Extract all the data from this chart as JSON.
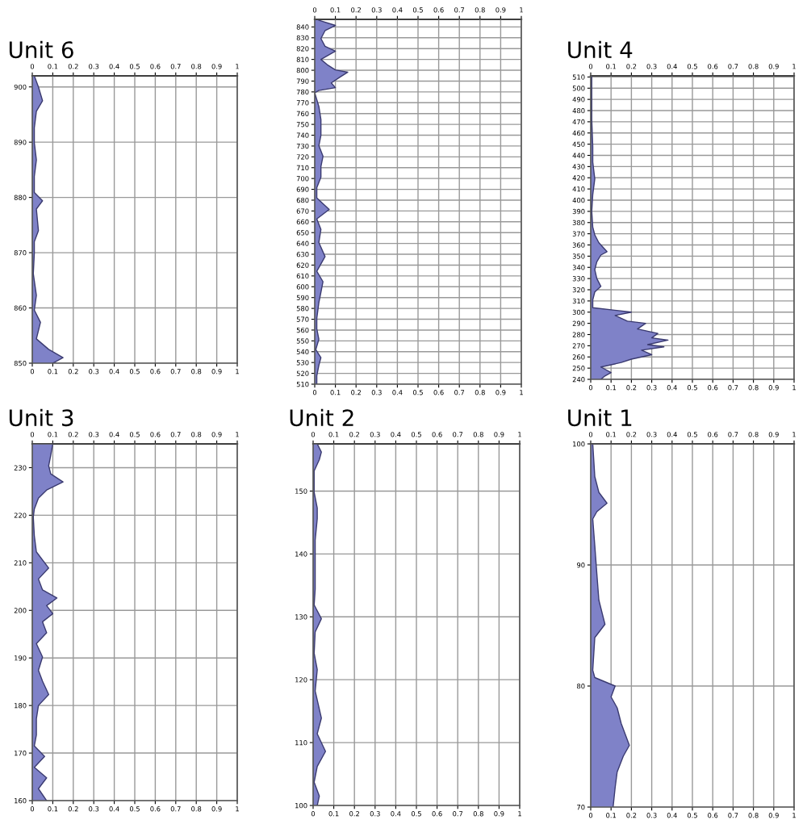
{
  "chart_data": [
    {
      "type": "area",
      "orientation": "horizontal",
      "title": "Unit 6",
      "grid": true,
      "xlim": [
        0,
        1
      ],
      "xticks": [
        0,
        0.1,
        0.2,
        0.3,
        0.4,
        0.5,
        0.6,
        0.7,
        0.8,
        0.9,
        1
      ],
      "x2lim": [
        0,
        1
      ],
      "x2ticks": [
        0,
        0.1,
        0.2,
        0.3,
        0.4,
        0.5,
        0.6,
        0.7,
        0.8,
        0.9,
        1
      ],
      "ylim": [
        850,
        902
      ],
      "yticks": [
        850,
        860,
        870,
        880,
        890,
        900
      ],
      "series": [
        {
          "color": "#7f82c8",
          "x": [
            902,
            900,
            897.5,
            895.6,
            892.6,
            889.9,
            886.8,
            883.8,
            880.9,
            879.4,
            877.9,
            874,
            872,
            869.9,
            866.2,
            862.3,
            859.6,
            857.4,
            854.4,
            852.5,
            851,
            850
          ],
          "values": [
            0.01,
            0.03,
            0.05,
            0.02,
            0.01,
            0.01,
            0.02,
            0.01,
            0.01,
            0.05,
            0.02,
            0.03,
            0.01,
            0.01,
            0.005,
            0.02,
            0.01,
            0.04,
            0.02,
            0.08,
            0.15,
            0.1
          ]
        }
      ]
    },
    {
      "type": "area",
      "orientation": "horizontal",
      "grid": true,
      "xlim": [
        0,
        1
      ],
      "xticks": [
        0,
        0.1,
        0.2,
        0.3,
        0.4,
        0.5,
        0.6,
        0.7,
        0.8,
        0.9,
        1
      ],
      "x2lim": [
        0,
        1
      ],
      "x2ticks": [
        0,
        0.1,
        0.2,
        0.3,
        0.4,
        0.5,
        0.6,
        0.7,
        0.8,
        0.9,
        1
      ],
      "ylim": [
        510,
        847
      ],
      "yticks": [
        510,
        520,
        530,
        540,
        550,
        560,
        570,
        580,
        590,
        600,
        610,
        620,
        630,
        640,
        650,
        660,
        670,
        680,
        690,
        700,
        710,
        720,
        730,
        740,
        750,
        760,
        770,
        780,
        790,
        800,
        810,
        820,
        830,
        840
      ],
      "series": [
        {
          "color": "#7f82c8",
          "x": [
            846.2,
            841.4,
            836.6,
            829.3,
            822.1,
            817.6,
            810,
            805.2,
            800.3,
            798.2,
            793.4,
            788.3,
            783.9,
            781.3,
            779.2,
            766.5,
            754.4,
            740,
            730.3,
            720.6,
            711,
            701.3,
            691.6,
            682,
            671.4,
            662.7,
            653,
            640.9,
            627.9,
            614.3,
            604.7,
            595,
            585.4,
            570.9,
            561.2,
            551.5,
            541.9,
            534.6,
            527.4,
            517.7,
            510
          ],
          "values": [
            0.02,
            0.1,
            0.05,
            0.03,
            0.05,
            0.1,
            0.03,
            0.06,
            0.1,
            0.16,
            0.12,
            0.08,
            0.1,
            0.02,
            0,
            0.02,
            0.03,
            0.03,
            0.02,
            0.04,
            0.03,
            0.03,
            0.01,
            0.01,
            0.07,
            0.01,
            0.03,
            0.02,
            0.05,
            0.01,
            0.04,
            0.03,
            0.02,
            0.01,
            0.01,
            0.02,
            0.005,
            0.03,
            0.02,
            0.01,
            0.01
          ]
        }
      ]
    },
    {
      "type": "area",
      "orientation": "horizontal",
      "title": "Unit 4",
      "grid": true,
      "xlim": [
        0,
        1
      ],
      "xticks": [
        0,
        0.1,
        0.2,
        0.3,
        0.4,
        0.5,
        0.6,
        0.7,
        0.8,
        0.9,
        1
      ],
      "x2lim": [
        0,
        1
      ],
      "x2ticks": [
        0,
        0.1,
        0.2,
        0.3,
        0.4,
        0.5,
        0.6,
        0.7,
        0.8,
        0.9,
        1
      ],
      "ylim": [
        240,
        511
      ],
      "yticks": [
        240,
        250,
        260,
        270,
        280,
        290,
        300,
        310,
        320,
        330,
        340,
        350,
        360,
        370,
        380,
        390,
        400,
        410,
        420,
        430,
        440,
        450,
        460,
        470,
        480,
        490,
        500,
        510
      ],
      "series": [
        {
          "color": "#7f82c8",
          "x": [
            510.7,
            472,
            448,
            434,
            419,
            405,
            390,
            376,
            369,
            362,
            354,
            351,
            345,
            338,
            330,
            323,
            318,
            311,
            304,
            300,
            297,
            292,
            290,
            285,
            281,
            277,
            275,
            271,
            269,
            266,
            262,
            258,
            255,
            251,
            246,
            243,
            240
          ],
          "values": [
            0.005,
            0.005,
            0.01,
            0.01,
            0.02,
            0.01,
            0.005,
            0.01,
            0.02,
            0.04,
            0.08,
            0.05,
            0.03,
            0.02,
            0.03,
            0.05,
            0.02,
            0.01,
            0.01,
            0.2,
            0.12,
            0.18,
            0.27,
            0.23,
            0.33,
            0.3,
            0.38,
            0.28,
            0.36,
            0.25,
            0.3,
            0.2,
            0.15,
            0.05,
            0.1,
            0.07,
            0.05
          ]
        }
      ]
    },
    {
      "type": "area",
      "orientation": "horizontal",
      "title": "Unit 3",
      "grid": true,
      "xlim": [
        0,
        1
      ],
      "xticks": [
        0,
        0.1,
        0.2,
        0.3,
        0.4,
        0.5,
        0.6,
        0.7,
        0.8,
        0.9,
        1
      ],
      "x2lim": [
        0,
        1
      ],
      "x2ticks": [
        0,
        0.1,
        0.2,
        0.3,
        0.4,
        0.5,
        0.6,
        0.7,
        0.8,
        0.9,
        1
      ],
      "ylim": [
        160,
        235
      ],
      "yticks": [
        160,
        170,
        180,
        190,
        200,
        210,
        220,
        230
      ],
      "series": [
        {
          "color": "#7f82c8",
          "x": [
            235,
            232.6,
            230.4,
            228.7,
            227,
            225.3,
            223.6,
            221.3,
            219.6,
            215.7,
            212.3,
            208.9,
            206.6,
            204.3,
            202.6,
            201,
            199.3,
            197.6,
            195.3,
            193,
            190.2,
            187.4,
            185.1,
            182.3,
            180,
            177.2,
            173.8,
            171.5,
            169.3,
            167,
            164.8,
            162.5,
            160
          ],
          "values": [
            0.1,
            0.09,
            0.08,
            0.09,
            0.15,
            0.07,
            0.03,
            0.01,
            0.005,
            0.01,
            0.02,
            0.08,
            0.03,
            0.05,
            0.12,
            0.07,
            0.1,
            0.05,
            0.07,
            0.02,
            0.05,
            0.03,
            0.05,
            0.08,
            0.03,
            0.02,
            0.02,
            0.01,
            0.06,
            0.01,
            0.07,
            0.03,
            0.07
          ]
        }
      ]
    },
    {
      "type": "area",
      "orientation": "horizontal",
      "title": "Unit 2",
      "grid": true,
      "xlim": [
        0,
        1
      ],
      "xticks": [
        0,
        0.1,
        0.2,
        0.3,
        0.4,
        0.5,
        0.6,
        0.7,
        0.8,
        0.9,
        1
      ],
      "x2lim": [
        0,
        1
      ],
      "x2ticks": [
        0,
        0.1,
        0.2,
        0.3,
        0.4,
        0.5,
        0.6,
        0.7,
        0.8,
        0.9,
        1
      ],
      "ylim": [
        100,
        157.5
      ],
      "yticks": [
        100,
        110,
        120,
        130,
        140,
        150
      ],
      "series": [
        {
          "color": "#7f82c8",
          "x": [
            157.5,
            156.2,
            155,
            153.2,
            149.8,
            147.3,
            145.6,
            142.2,
            138.8,
            136.2,
            134.4,
            131.9,
            129.7,
            127.6,
            124.2,
            121.6,
            118.2,
            113.9,
            111.4,
            108.6,
            106.2,
            103.7,
            101.5,
            100
          ],
          "values": [
            0.02,
            0.04,
            0.03,
            0.005,
            0.005,
            0.02,
            0.02,
            0.01,
            0.01,
            0.01,
            0.01,
            0.005,
            0.04,
            0.01,
            0.005,
            0.02,
            0.01,
            0.04,
            0.02,
            0.06,
            0.02,
            0.005,
            0.03,
            0.02
          ]
        }
      ]
    },
    {
      "type": "area",
      "orientation": "horizontal",
      "title": "Unit 1",
      "grid": true,
      "xlim": [
        0,
        1
      ],
      "xticks": [
        0,
        0.1,
        0.2,
        0.3,
        0.4,
        0.5,
        0.6,
        0.7,
        0.8,
        0.9,
        1
      ],
      "x2lim": [
        0,
        1
      ],
      "x2ticks": [
        0,
        0.1,
        0.2,
        0.3,
        0.4,
        0.5,
        0.6,
        0.7,
        0.8,
        0.9,
        1
      ],
      "ylim": [
        70,
        100
      ],
      "yticks": [
        70,
        80,
        90,
        100
      ],
      "series": [
        {
          "color": "#7f82c8",
          "x": [
            100,
            97.3,
            96,
            95.1,
            94.4,
            93.8,
            91.6,
            89.3,
            87.1,
            85.1,
            84,
            81.3,
            80.7,
            80,
            79.1,
            78.2,
            76.9,
            75.1,
            74.2,
            72.9,
            71.6,
            70
          ],
          "values": [
            0.01,
            0.02,
            0.04,
            0.08,
            0.03,
            0.01,
            0.02,
            0.03,
            0.04,
            0.07,
            0.02,
            0.01,
            0.02,
            0.12,
            0.1,
            0.13,
            0.15,
            0.19,
            0.16,
            0.13,
            0.12,
            0.11
          ]
        }
      ]
    }
  ]
}
